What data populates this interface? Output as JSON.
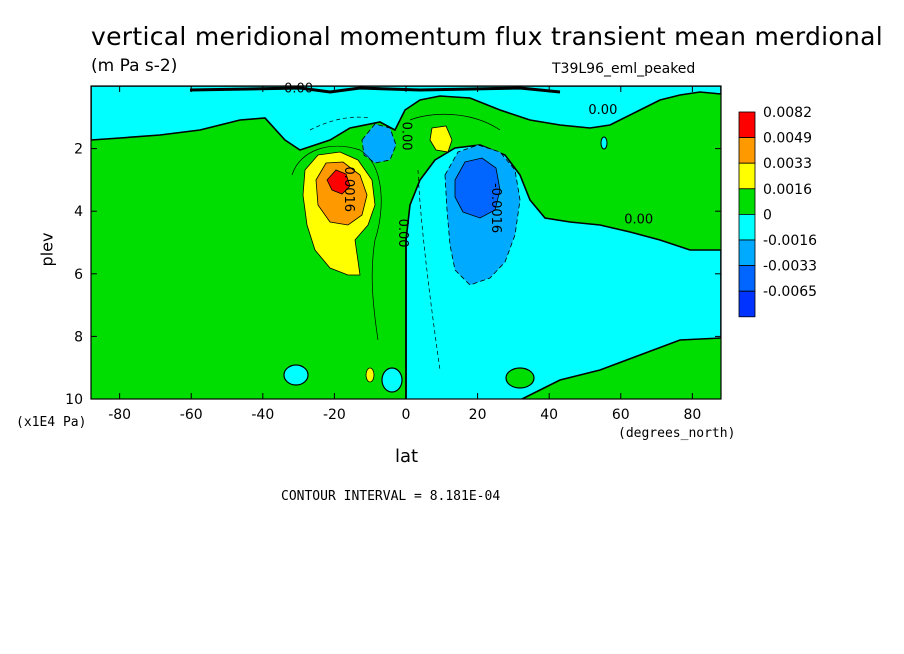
{
  "chart_data": {
    "type": "heatmap",
    "title": "vertical meridional momentum flux transient mean merdional",
    "units": "(m Pa s-2)",
    "run_label": "T39L96_eml_peaked",
    "xlabel": "lat",
    "xunits": "(degrees_north)",
    "ylabel": "plev",
    "yunits": "(x1E4 Pa)",
    "xlim": [
      -88,
      88
    ],
    "ylim": [
      10,
      0
    ],
    "x_ticks": [
      -80,
      -60,
      -40,
      -20,
      0,
      20,
      40,
      60,
      80
    ],
    "x_tick_labels": [
      "-80",
      "-60",
      "-40",
      "-20",
      "0",
      "20",
      "40",
      "60",
      "80"
    ],
    "y_ticks": [
      2,
      4,
      6,
      8,
      10
    ],
    "y_tick_labels": [
      "2",
      "4",
      "6",
      "8",
      "10"
    ],
    "legend_levels": [
      "0.0082",
      "0.0049",
      "0.0033",
      "0.0016",
      "0",
      "-0.0016",
      "-0.0033",
      "-0.0065"
    ],
    "legend_colors": [
      "#ff0000",
      "#ff9900",
      "#ffff00",
      "#00dd00",
      "#00ffff",
      "#00aaff",
      "#0066ff",
      "#0033ff"
    ],
    "contour_labels": [
      {
        "text": "0.00",
        "lat": -30,
        "plev": 0.2
      },
      {
        "text": "0.00",
        "lat": 55,
        "plev": 0.9
      },
      {
        "text": "0.00",
        "lat": -1,
        "plev": 1.6
      },
      {
        "text": "0.00",
        "lat": -2,
        "plev": 4.7
      },
      {
        "text": "0.00",
        "lat": 65,
        "plev": 4.4
      },
      {
        "text": "0.0016",
        "lat": -17,
        "plev": 3.3
      },
      {
        "text": "-0.0016",
        "lat": 24,
        "plev": 3.9
      }
    ],
    "contour_interval_text": "CONTOUR INTERVAL = 8.181E-04",
    "legend_position": "right"
  }
}
